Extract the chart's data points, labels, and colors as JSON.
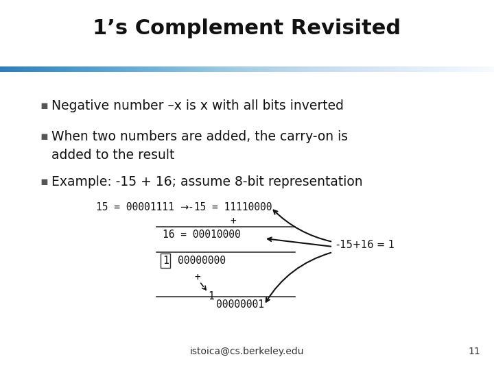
{
  "title": "1’s Complement Revisited",
  "title_fontsize": 22,
  "title_fontweight": "bold",
  "background_color": "#ffffff",
  "bullet_color": "#111111",
  "bullet_fontsize": 13.5,
  "bullets": [
    "Negative number –x is x with all bits inverted",
    "When two numbers are added, the carry-on is\nadded to the result",
    "Example: -15 + 16; assume 8-bit representation"
  ],
  "mono_fontsize": 10.5,
  "footer_text": "istoica@cs.berkeley.edu",
  "footer_number": "11",
  "footer_fontsize": 10,
  "footer_color": "#333333"
}
